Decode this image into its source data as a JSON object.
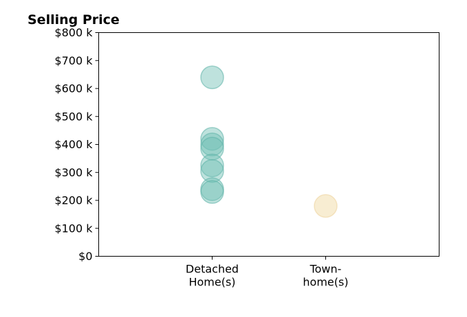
{
  "chart_data": {
    "type": "scatter",
    "title": "Selling Price",
    "xlabel": "",
    "ylabel": "",
    "categories": [
      {
        "label_lines": [
          "Detached",
          "Home(s)"
        ]
      },
      {
        "label_lines": [
          "Town-",
          "home(s)"
        ]
      }
    ],
    "x_range": [
      0,
      3
    ],
    "ylim": [
      0,
      800000
    ],
    "y_ticks": [
      0,
      100000,
      200000,
      300000,
      400000,
      500000,
      600000,
      700000,
      800000
    ],
    "y_tick_labels": [
      "$0",
      "$100 k",
      "$200 k",
      "$300 k",
      "$400 k",
      "$500 k",
      "$600 k",
      "$700 k",
      "$800 k"
    ],
    "grid": false,
    "legend": "none",
    "series": [
      {
        "category_index": 0,
        "color": "#6fbfb4",
        "edge_color": "#5bb0a5",
        "opacity": 0.45,
        "values": [
          640000,
          420000,
          400000,
          385000,
          325000,
          305000,
          240000,
          230000
        ]
      },
      {
        "category_index": 1,
        "color": "#f4e1b4",
        "edge_color": "#ecd29b",
        "opacity": 0.6,
        "values": [
          180000
        ]
      }
    ]
  }
}
